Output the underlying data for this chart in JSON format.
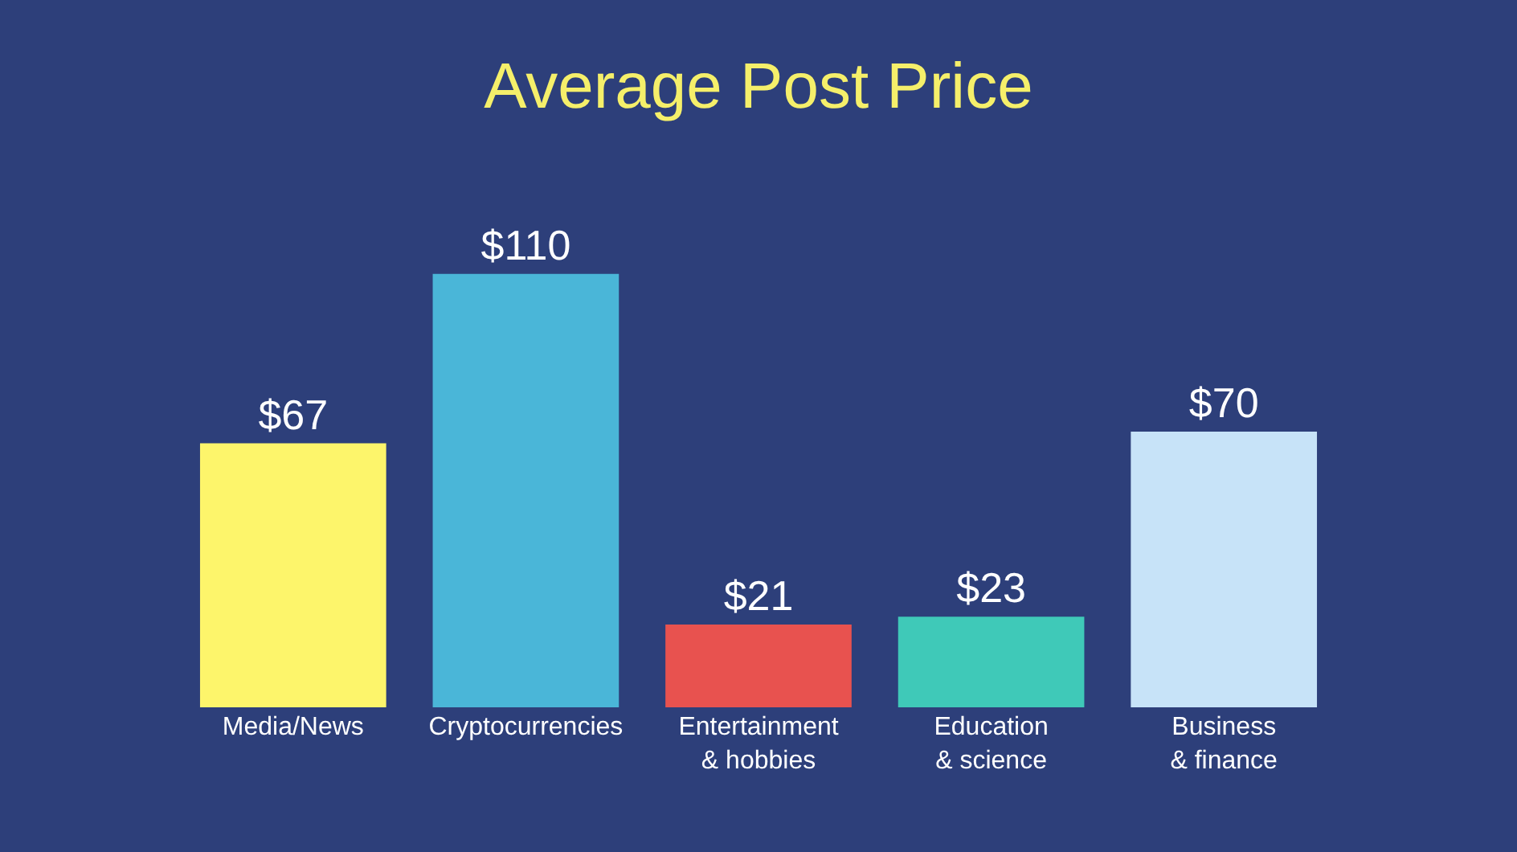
{
  "chart_data": {
    "type": "bar",
    "title": "Average Post Price",
    "categories": [
      "Media/News",
      "Cryptocurrencies",
      "Entertainment\n& hobbies",
      "Education\n& science",
      "Business\n& finance"
    ],
    "values": [
      67,
      110,
      21,
      23,
      70
    ],
    "value_labels": [
      "$67",
      "$110",
      "$21",
      "$23",
      "$70"
    ],
    "colors": [
      "#fdf56b",
      "#4ab6d8",
      "#e8524f",
      "#3fc9b8",
      "#c7e3f8"
    ],
    "grid": false,
    "legend": false
  }
}
